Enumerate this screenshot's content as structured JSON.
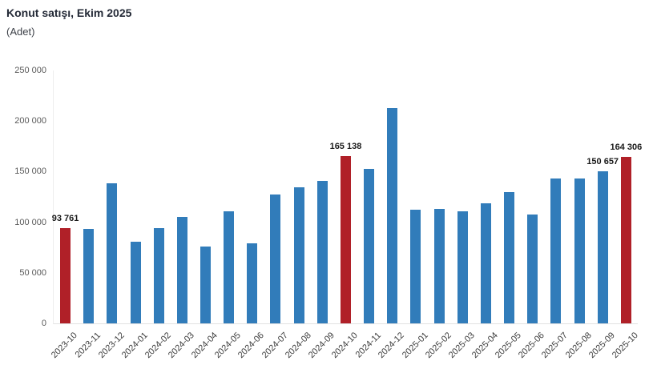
{
  "header": {
    "title": "Konut satışı, Ekim 2025",
    "subtitle": "(Adet)"
  },
  "colors": {
    "bar_default": "#317CBA",
    "bar_highlight": "#B02028",
    "axis_line": "#ededed",
    "tick_label": "#595959"
  },
  "chart_data": {
    "type": "bar",
    "title": "Konut satışı, Ekim 2025",
    "ylabel": "Adet",
    "ylim": [
      0,
      250000
    ],
    "ytick_labels": [
      "250 000",
      "200 000",
      "150 000",
      "100 000",
      "50 000",
      "0"
    ],
    "grid": false,
    "legend": false,
    "categories": [
      "2023-10",
      "2023-11",
      "2023-12",
      "2024-01",
      "2024-02",
      "2024-03",
      "2024-04",
      "2024-05",
      "2024-06",
      "2024-07",
      "2024-08",
      "2024-09",
      "2024-10",
      "2024-11",
      "2024-12",
      "2025-01",
      "2025-02",
      "2025-03",
      "2025-04",
      "2025-05",
      "2025-06",
      "2025-07",
      "2025-08",
      "2025-09",
      "2025-10"
    ],
    "values": [
      93761,
      93514,
      138577,
      80308,
      93902,
      105476,
      75569,
      110588,
      79313,
      127088,
      134155,
      140919,
      165138,
      153014,
      212637,
      112173,
      112818,
      110795,
      118359,
      130025,
      107639,
      142858,
      143319,
      150657,
      164306
    ],
    "highlight_indices": [
      0,
      12,
      24
    ],
    "labeled_points": [
      {
        "index": 0,
        "label": "93 761"
      },
      {
        "index": 12,
        "label": "165 138"
      },
      {
        "index": 23,
        "label": "150 657"
      },
      {
        "index": 24,
        "label": "164 306"
      }
    ]
  }
}
